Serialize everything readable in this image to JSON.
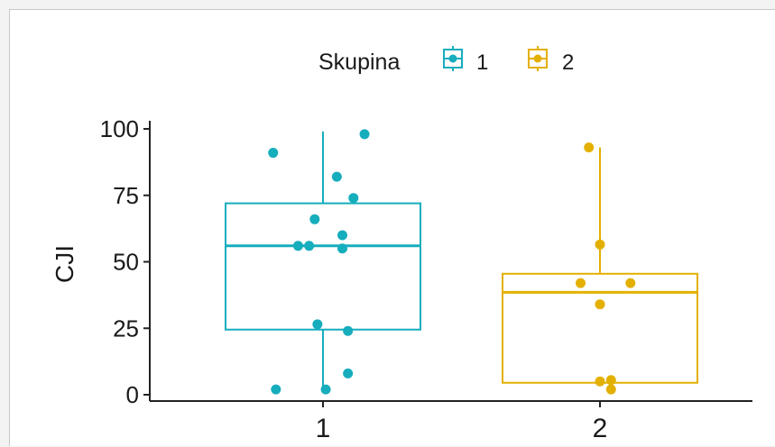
{
  "chart_data": {
    "type": "boxplot",
    "title": "",
    "xlabel": "",
    "ylabel": "CJI",
    "ylim": [
      0,
      100
    ],
    "yticks": [
      0,
      25,
      50,
      75,
      100
    ],
    "categories": [
      "1",
      "2"
    ],
    "legend": {
      "title": "Skupina",
      "position": "top",
      "entries": [
        "1",
        "2"
      ]
    },
    "grid": false,
    "series": [
      {
        "name": "1",
        "color": "#16adbd",
        "box": {
          "q1": 24.5,
          "median": 56,
          "q3": 72,
          "whisker_low": 2.5,
          "whisker_high": 99
        },
        "points": [
          {
            "x": 0.82,
            "y": 91
          },
          {
            "x": 1.15,
            "y": 98
          },
          {
            "x": 1.05,
            "y": 82
          },
          {
            "x": 1.11,
            "y": 74
          },
          {
            "x": 0.97,
            "y": 66
          },
          {
            "x": 1.07,
            "y": 60
          },
          {
            "x": 0.91,
            "y": 56
          },
          {
            "x": 0.95,
            "y": 56
          },
          {
            "x": 1.07,
            "y": 55
          },
          {
            "x": 0.98,
            "y": 26.5
          },
          {
            "x": 1.09,
            "y": 24
          },
          {
            "x": 1.09,
            "y": 8
          },
          {
            "x": 0.83,
            "y": 2
          },
          {
            "x": 1.01,
            "y": 2
          }
        ]
      },
      {
        "name": "2",
        "color": "#e3b000",
        "box": {
          "q1": 4.5,
          "median": 38.5,
          "q3": 45.5,
          "whisker_low": 4.5,
          "whisker_high": 93
        },
        "points": [
          {
            "x": 1.96,
            "y": 93
          },
          {
            "x": 2.0,
            "y": 56.5
          },
          {
            "x": 1.93,
            "y": 42
          },
          {
            "x": 2.11,
            "y": 42
          },
          {
            "x": 2.0,
            "y": 34
          },
          {
            "x": 2.0,
            "y": 5
          },
          {
            "x": 2.04,
            "y": 5.5
          },
          {
            "x": 2.04,
            "y": 2
          }
        ]
      }
    ]
  }
}
